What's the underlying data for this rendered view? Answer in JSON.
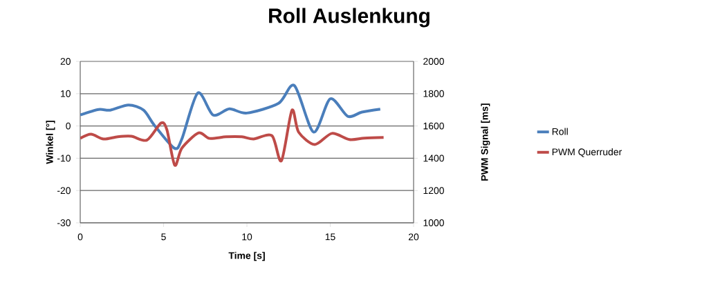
{
  "chart_data": {
    "type": "line",
    "title": "Roll Auslenkung",
    "xlabel": "Time [s]",
    "ylabel": "Winkel [°]",
    "y2label": "PWM Signal  [ms]",
    "xlim": [
      0,
      20
    ],
    "xticks": [
      0,
      5,
      10,
      15,
      20
    ],
    "ylim": [
      -30,
      20
    ],
    "yticks": [
      -30,
      -20,
      -10,
      0,
      10,
      20
    ],
    "y2lim": [
      1000,
      2000
    ],
    "y2ticks": [
      1000,
      1200,
      1400,
      1600,
      1800,
      2000
    ],
    "grid": "y",
    "legend": "right",
    "marker": "none",
    "line_style": "solid",
    "series": [
      {
        "name": "Roll",
        "color": "#4a7ebb",
        "x": [
          0,
          1.1,
          1.8,
          2.9,
          3.8,
          4.45,
          5.65,
          6.1,
          7.05,
          7.97,
          8.95,
          10,
          11.9,
          12.85,
          14.0,
          15.0,
          16.05,
          16.9,
          18.0
        ],
        "values": [
          3.4,
          5.1,
          4.9,
          6.5,
          4.9,
          0.2,
          -6.9,
          -4,
          10.2,
          3.4,
          5.3,
          4.0,
          7.0,
          12.5,
          -1.9,
          8.4,
          3.0,
          4.3,
          5.2
        ]
      },
      {
        "name": "PWM Querruder",
        "color": "#be4b48",
        "axis": "y2",
        "x": [
          0,
          0.65,
          1.4,
          2.25,
          3.07,
          4.0,
          4.85,
          5.2,
          5.67,
          6.1,
          7.1,
          7.75,
          8.75,
          9.7,
          10.4,
          11.5,
          12.07,
          12.7,
          13.1,
          14.07,
          15.1,
          16.15,
          17.05,
          18.2
        ],
        "values": [
          1523,
          1549,
          1519,
          1533,
          1536,
          1512,
          1618,
          1576,
          1357,
          1463,
          1557,
          1523,
          1533,
          1533,
          1519,
          1540,
          1384,
          1697,
          1562,
          1485,
          1554,
          1516,
          1525,
          1529
        ]
      }
    ]
  }
}
